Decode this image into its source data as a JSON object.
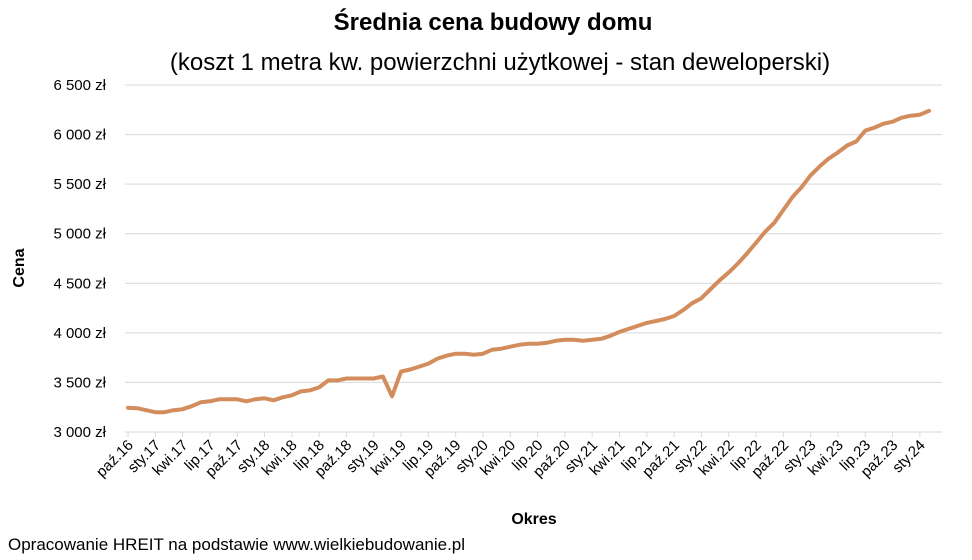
{
  "chart_data": {
    "type": "line",
    "title": "Średnia cena budowy domu",
    "subtitle": "(koszt 1 metra kw. powierzchni użytkowej - stan deweloperski)",
    "xlabel": "Okres",
    "ylabel": "Cena",
    "ylim": [
      3000,
      6500
    ],
    "yticks": [
      3000,
      3500,
      4000,
      4500,
      5000,
      5500,
      6000,
      6500
    ],
    "ytick_labels": [
      "3 000 zł",
      "3 500 zł",
      "4 000 zł",
      "4 500 zł",
      "5 000 zł",
      "5 500 zł",
      "6 000 zł",
      "6 500 zł"
    ],
    "grid": "horizontal",
    "line_color": "#D38C5C",
    "xtick_labels": [
      "paź.16",
      "sty.17",
      "kwi.17",
      "lip.17",
      "paź.17",
      "sty.18",
      "kwi.18",
      "lip.18",
      "paź.18",
      "sty.19",
      "kwi.19",
      "lip.19",
      "paź.19",
      "sty.20",
      "kwi.20",
      "lip.20",
      "paź.20",
      "sty.21",
      "kwi.21",
      "lip.21",
      "paź.21",
      "sty.22",
      "kwi.22",
      "lip.22",
      "paź.22",
      "sty.23",
      "kwi.23",
      "lip.23",
      "paź.23",
      "sty.24"
    ],
    "series": [
      {
        "values": [
          3245,
          3240,
          3220,
          3200,
          3200,
          3220,
          3230,
          3260,
          3300,
          3310,
          3330,
          3330,
          3330,
          3310,
          3330,
          3340,
          3320,
          3350,
          3370,
          3410,
          3420,
          3450,
          3520,
          3520,
          3540,
          3540,
          3540,
          3540,
          3560,
          3360,
          3610,
          3630,
          3660,
          3690,
          3740,
          3770,
          3790,
          3790,
          3780,
          3790,
          3830,
          3840,
          3860,
          3880,
          3890,
          3890,
          3900,
          3920,
          3930,
          3930,
          3920,
          3930,
          3940,
          3970,
          4010,
          4040,
          4070,
          4100,
          4120,
          4140,
          4170,
          4230,
          4300,
          4350,
          4440,
          4530,
          4610,
          4700,
          4800,
          4910,
          5020,
          5110,
          5240,
          5370,
          5470,
          5590,
          5680,
          5760,
          5820,
          5890,
          5930,
          6040,
          6070,
          6110,
          6130,
          6170,
          6190,
          6200,
          6240
        ]
      }
    ]
  },
  "source_note": "Opracowanie HREIT na podstawie www.wielkiebudowanie.pl"
}
